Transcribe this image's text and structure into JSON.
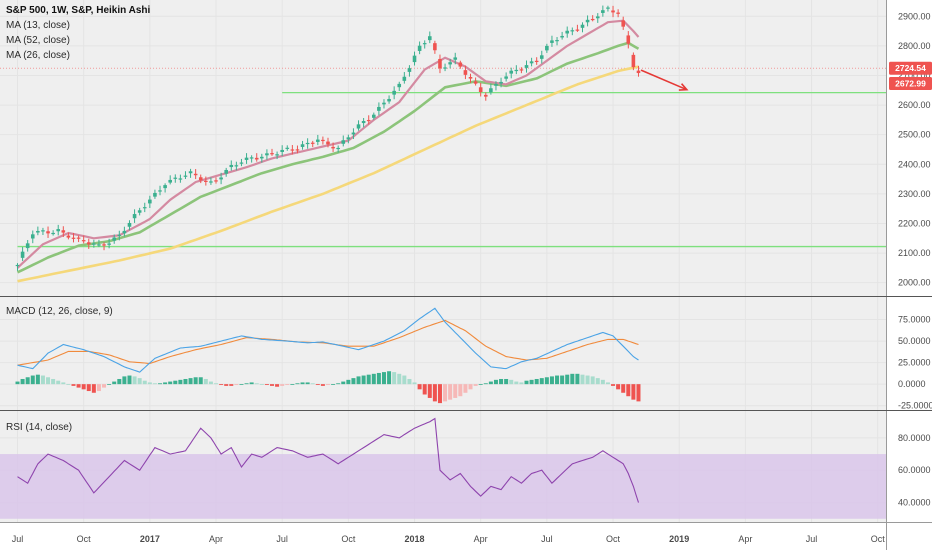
{
  "header": {
    "symbol_line": "S&P 500, 1W, S&P, Heikin Ashi",
    "studies": [
      "MA (13, close)",
      "MA (52, close)",
      "MA (26, close)"
    ]
  },
  "colors": {
    "up": "#3bb08f",
    "down": "#ef5350",
    "ma13": "#d48aa1",
    "ma52": "#f5d87a",
    "ma26": "#8cc47a",
    "hline": "#7ee07e",
    "macd": "#4aa3e6",
    "signal": "#f08a3c",
    "rsi": "#8e44ad",
    "rsi_band": "#d9c6ea",
    "arrow": "#e53935",
    "grid": "#e4e4e4",
    "bg": "#efefef"
  },
  "chart_data": [
    {
      "type": "candlestick",
      "x_axis": {
        "labels": [
          "Jul",
          "Oct",
          "2017",
          "Apr",
          "Jul",
          "Oct",
          "2018",
          "Apr",
          "Jul",
          "Oct",
          "2019",
          "Apr",
          "Jul",
          "Oct"
        ],
        "weeks": [
          0,
          13,
          26,
          39,
          52,
          65,
          78,
          91,
          104,
          117,
          130,
          143,
          156,
          169
        ]
      },
      "y_axis": {
        "ticks": [
          2000,
          2100,
          2200,
          2300,
          2400,
          2500,
          2600,
          2700,
          2800,
          2900
        ],
        "range": [
          1955,
          2955
        ]
      },
      "price_labels": [
        {
          "value": 2724.54,
          "text": "2724.54",
          "color": "#ef5350"
        },
        {
          "value": 2672.99,
          "text": "2672.99",
          "color": "#ef5350"
        }
      ],
      "horizontal_lines": [
        {
          "value": 2642,
          "start_week": 52
        },
        {
          "value": 2122,
          "start_week": 0
        }
      ],
      "dotted_line": {
        "value": 2724.54
      },
      "arrow": {
        "from_week": 122.5,
        "from_value": 2718,
        "to_week": 131.5,
        "to_value": 2652
      },
      "candle_keyframes": [
        [
          0,
          2060
        ],
        [
          3,
          2165
        ],
        [
          8,
          2180
        ],
        [
          12,
          2140
        ],
        [
          16,
          2125
        ],
        [
          20,
          2160
        ],
        [
          25,
          2260
        ],
        [
          29,
          2340
        ],
        [
          34,
          2365
        ],
        [
          38,
          2340
        ],
        [
          42,
          2390
        ],
        [
          46,
          2420
        ],
        [
          50,
          2440
        ],
        [
          55,
          2450
        ],
        [
          59,
          2490
        ],
        [
          63,
          2450
        ],
        [
          67,
          2530
        ],
        [
          71,
          2590
        ],
        [
          75,
          2660
        ],
        [
          79,
          2800
        ],
        [
          81,
          2840
        ],
        [
          83,
          2720
        ],
        [
          86,
          2750
        ],
        [
          89,
          2690
        ],
        [
          92,
          2635
        ],
        [
          95,
          2680
        ],
        [
          98,
          2720
        ],
        [
          102,
          2755
        ],
        [
          105,
          2810
        ],
        [
          109,
          2855
        ],
        [
          113,
          2895
        ],
        [
          116,
          2920
        ],
        [
          118,
          2910
        ],
        [
          120,
          2810
        ],
        [
          121,
          2740
        ],
        [
          122,
          2712
        ]
      ],
      "ma13_keyframes": [
        [
          0,
          2050
        ],
        [
          5,
          2130
        ],
        [
          10,
          2168
        ],
        [
          15,
          2150
        ],
        [
          20,
          2160
        ],
        [
          26,
          2215
        ],
        [
          30,
          2280
        ],
        [
          35,
          2340
        ],
        [
          40,
          2365
        ],
        [
          45,
          2390
        ],
        [
          50,
          2420
        ],
        [
          55,
          2440
        ],
        [
          60,
          2460
        ],
        [
          65,
          2480
        ],
        [
          70,
          2550
        ],
        [
          75,
          2610
        ],
        [
          80,
          2720
        ],
        [
          84,
          2760
        ],
        [
          88,
          2730
        ],
        [
          92,
          2680
        ],
        [
          96,
          2670
        ],
        [
          100,
          2700
        ],
        [
          104,
          2750
        ],
        [
          108,
          2800
        ],
        [
          112,
          2840
        ],
        [
          116,
          2880
        ],
        [
          119,
          2885
        ],
        [
          121,
          2850
        ],
        [
          122,
          2830
        ]
      ],
      "ma26_keyframes": [
        [
          0,
          2035
        ],
        [
          6,
          2085
        ],
        [
          12,
          2125
        ],
        [
          18,
          2140
        ],
        [
          24,
          2170
        ],
        [
          30,
          2230
        ],
        [
          36,
          2290
        ],
        [
          42,
          2330
        ],
        [
          48,
          2370
        ],
        [
          54,
          2400
        ],
        [
          60,
          2425
        ],
        [
          66,
          2455
        ],
        [
          72,
          2510
        ],
        [
          78,
          2580
        ],
        [
          84,
          2660
        ],
        [
          90,
          2680
        ],
        [
          96,
          2665
        ],
        [
          102,
          2690
        ],
        [
          108,
          2740
        ],
        [
          114,
          2775
        ],
        [
          118,
          2800
        ],
        [
          120,
          2810
        ],
        [
          122,
          2790
        ]
      ],
      "ma52_keyframes": [
        [
          0,
          2005
        ],
        [
          10,
          2040
        ],
        [
          20,
          2075
        ],
        [
          30,
          2115
        ],
        [
          40,
          2175
        ],
        [
          50,
          2240
        ],
        [
          60,
          2300
        ],
        [
          70,
          2370
        ],
        [
          80,
          2450
        ],
        [
          90,
          2530
        ],
        [
          100,
          2600
        ],
        [
          110,
          2670
        ],
        [
          118,
          2715
        ],
        [
          122,
          2730
        ]
      ]
    },
    {
      "type": "line",
      "title": "MACD (12, 26, close, 9)",
      "y_axis": {
        "ticks": [
          75,
          50,
          25,
          0,
          -25
        ],
        "labels": [
          "75.0000",
          "50.0000",
          "25.0000",
          "0.0000",
          "-25.0000"
        ],
        "range": [
          -30,
          100
        ]
      },
      "series": [
        {
          "name": "MACD",
          "keyframes": [
            [
              0,
              22
            ],
            [
              3,
              18
            ],
            [
              6,
              36
            ],
            [
              9,
              46
            ],
            [
              13,
              40
            ],
            [
              17,
              32
            ],
            [
              21,
              20
            ],
            [
              24,
              14
            ],
            [
              27,
              30
            ],
            [
              32,
              42
            ],
            [
              36,
              44
            ],
            [
              40,
              50
            ],
            [
              44,
              56
            ],
            [
              48,
              52
            ],
            [
              53,
              50
            ],
            [
              57,
              48
            ],
            [
              60,
              49
            ],
            [
              64,
              44
            ],
            [
              67,
              40
            ],
            [
              72,
              50
            ],
            [
              76,
              62
            ],
            [
              79,
              76
            ],
            [
              82,
              88
            ],
            [
              84,
              72
            ],
            [
              86,
              60
            ],
            [
              90,
              36
            ],
            [
              93,
              20
            ],
            [
              96,
              18
            ],
            [
              99,
              26
            ],
            [
              102,
              30
            ],
            [
              105,
              38
            ],
            [
              108,
              46
            ],
            [
              112,
              54
            ],
            [
              115,
              60
            ],
            [
              117,
              56
            ],
            [
              119,
              44
            ],
            [
              121,
              32
            ],
            [
              122,
              28
            ]
          ]
        },
        {
          "name": "Signal",
          "keyframes": [
            [
              0,
              22
            ],
            [
              6,
              28
            ],
            [
              10,
              38
            ],
            [
              14,
              38
            ],
            [
              18,
              34
            ],
            [
              22,
              26
            ],
            [
              26,
              24
            ],
            [
              30,
              32
            ],
            [
              35,
              40
            ],
            [
              40,
              46
            ],
            [
              45,
              54
            ],
            [
              50,
              52
            ],
            [
              55,
              49
            ],
            [
              60,
              48
            ],
            [
              65,
              44
            ],
            [
              70,
              44
            ],
            [
              75,
              54
            ],
            [
              80,
              66
            ],
            [
              84,
              74
            ],
            [
              88,
              62
            ],
            [
              92,
              44
            ],
            [
              96,
              32
            ],
            [
              100,
              28
            ],
            [
              104,
              30
            ],
            [
              108,
              38
            ],
            [
              112,
              46
            ],
            [
              116,
              52
            ],
            [
              119,
              52
            ],
            [
              122,
              46
            ]
          ]
        }
      ],
      "histogram": [
        3,
        6,
        8,
        10,
        11,
        10,
        8,
        6,
        4,
        2,
        0,
        -2,
        -4,
        -6,
        -8,
        -10,
        -8,
        -4,
        0,
        3,
        6,
        9,
        10,
        9,
        7,
        4,
        2,
        1,
        1,
        2,
        3,
        4,
        5,
        6,
        7,
        8,
        8,
        6,
        3,
        1,
        -1,
        -2,
        -2,
        -1,
        0,
        1,
        2,
        1,
        0,
        -1,
        -2,
        -3,
        -2,
        -1,
        0,
        1,
        2,
        2,
        1,
        -1,
        -2,
        -1,
        0,
        1,
        3,
        5,
        7,
        9,
        10,
        11,
        12,
        13,
        14,
        15,
        14,
        12,
        10,
        6,
        2,
        -6,
        -12,
        -16,
        -20,
        -22,
        -20,
        -18,
        -16,
        -14,
        -10,
        -6,
        -2,
        0,
        1,
        3,
        5,
        6,
        6,
        5,
        3,
        2,
        4,
        5,
        6,
        7,
        8,
        9,
        10,
        10,
        11,
        12,
        12,
        11,
        10,
        9,
        7,
        5,
        2,
        -2,
        -6,
        -10,
        -14,
        -18,
        -20
      ]
    },
    {
      "type": "line",
      "title": "RSI (14, close)",
      "y_axis": {
        "ticks": [
          80,
          60,
          40
        ],
        "labels": [
          "80.0000",
          "60.0000",
          "40.0000"
        ],
        "range": [
          28,
          96
        ]
      },
      "band": [
        30,
        70
      ],
      "series": [
        {
          "name": "RSI",
          "keyframes": [
            [
              0,
              56
            ],
            [
              2,
              52
            ],
            [
              4,
              64
            ],
            [
              6,
              70
            ],
            [
              9,
              66
            ],
            [
              12,
              60
            ],
            [
              15,
              46
            ],
            [
              18,
              56
            ],
            [
              21,
              66
            ],
            [
              24,
              60
            ],
            [
              27,
              74
            ],
            [
              30,
              70
            ],
            [
              33,
              72
            ],
            [
              36,
              86
            ],
            [
              38,
              80
            ],
            [
              40,
              70
            ],
            [
              42,
              74
            ],
            [
              44,
              62
            ],
            [
              46,
              70
            ],
            [
              48,
              68
            ],
            [
              51,
              74
            ],
            [
              54,
              72
            ],
            [
              57,
              68
            ],
            [
              60,
              70
            ],
            [
              63,
              64
            ],
            [
              66,
              70
            ],
            [
              69,
              76
            ],
            [
              72,
              82
            ],
            [
              75,
              80
            ],
            [
              78,
              86
            ],
            [
              81,
              90
            ],
            [
              82,
              92
            ],
            [
              83,
              60
            ],
            [
              85,
              54
            ],
            [
              87,
              58
            ],
            [
              89,
              50
            ],
            [
              91,
              44
            ],
            [
              93,
              50
            ],
            [
              95,
              48
            ],
            [
              97,
              56
            ],
            [
              99,
              52
            ],
            [
              101,
              58
            ],
            [
              103,
              60
            ],
            [
              105,
              52
            ],
            [
              107,
              58
            ],
            [
              109,
              64
            ],
            [
              111,
              66
            ],
            [
              113,
              68
            ],
            [
              115,
              72
            ],
            [
              117,
              68
            ],
            [
              119,
              64
            ],
            [
              120,
              58
            ],
            [
              121,
              50
            ],
            [
              122,
              40
            ]
          ]
        }
      ]
    }
  ]
}
